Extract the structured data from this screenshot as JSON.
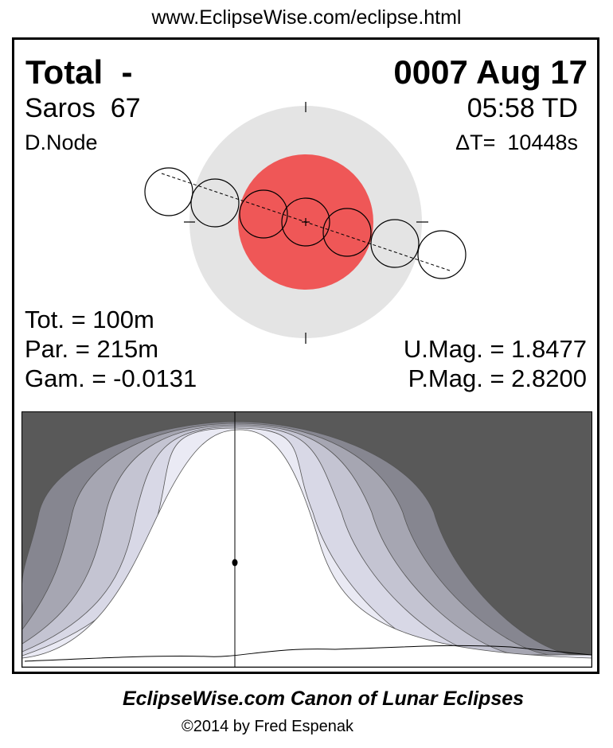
{
  "url": "www.EclipseWise.com/eclipse.html",
  "header": {
    "type": "Total  -",
    "date": "0007 Aug 17",
    "saros": "Saros  67",
    "time": "05:58 TD",
    "node": "D.Node",
    "delta_t": "ΔT=  10448s"
  },
  "stats": {
    "tot": "Tot. = 100m",
    "par": "Par. = 215m",
    "gam": "Gam. = -0.0131",
    "umag": "U.Mag. = 1.8477",
    "pmag": "P.Mag. = 2.8200"
  },
  "colors": {
    "umbra": "#ef5757",
    "penumbra": "#e4e4e4",
    "night": "#595959",
    "map_bands": [
      "#868690",
      "#a6a6b2",
      "#c4c4d2",
      "#d8d8e6",
      "#eaeaf4"
    ]
  },
  "footer": {
    "title": "EclipseWise.com Canon of Lunar Eclipses",
    "copyright": "©2014 by Fred Espenak"
  }
}
